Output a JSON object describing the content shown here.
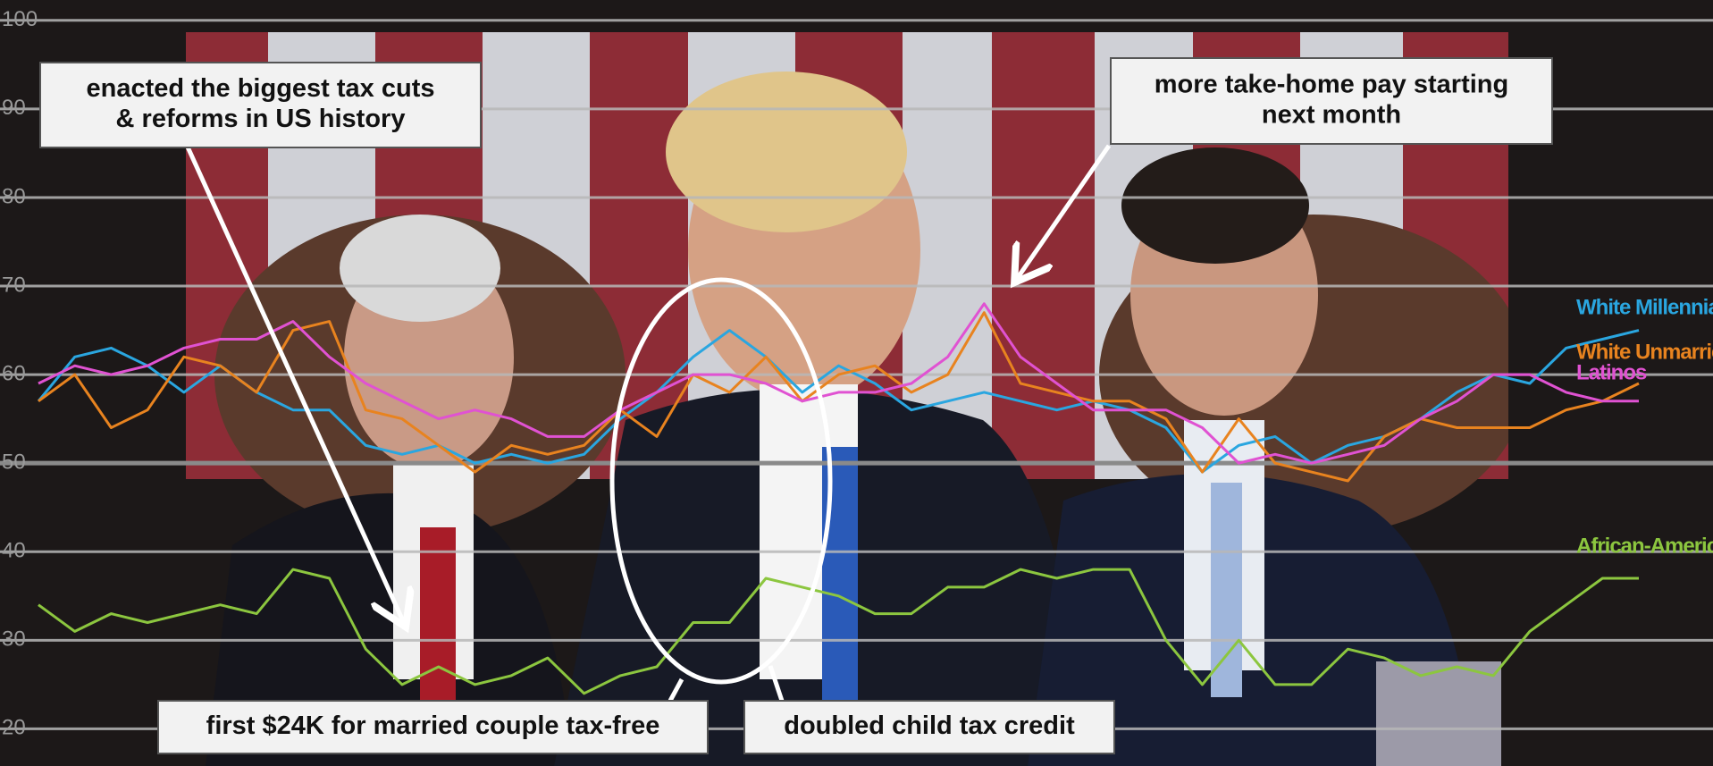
{
  "chart_data": {
    "type": "line",
    "ylim": [
      15.8,
      102.3
    ],
    "yticks": [
      20,
      30,
      40,
      50,
      60,
      70,
      80,
      90,
      100
    ],
    "grid": true,
    "series": [
      {
        "name": "White Millennials",
        "color": "#2aa6e0",
        "values": [
          57,
          62,
          63,
          61,
          58,
          61,
          58,
          56,
          56,
          52,
          51,
          52,
          50,
          51,
          50,
          51,
          55,
          58,
          62,
          65,
          62,
          58,
          61,
          59,
          56,
          57,
          58,
          57,
          56,
          57,
          56,
          54,
          49,
          52,
          53,
          50,
          52,
          53,
          55,
          58,
          60,
          59,
          63,
          64,
          65
        ]
      },
      {
        "name": "White Unmarried Women",
        "color": "#e8831f",
        "values": [
          57,
          60,
          54,
          56,
          62,
          61,
          58,
          65,
          66,
          56,
          55,
          52,
          49,
          52,
          51,
          52,
          56,
          53,
          60,
          58,
          62,
          57,
          60,
          61,
          58,
          60,
          67,
          59,
          58,
          57,
          57,
          55,
          49,
          55,
          50,
          49,
          48,
          53,
          55,
          54,
          54,
          54,
          56,
          57,
          59
        ]
      },
      {
        "name": "Latinos",
        "color": "#e052d2",
        "values": [
          59,
          61,
          60,
          61,
          63,
          64,
          64,
          66,
          62,
          59,
          57,
          55,
          56,
          55,
          53,
          53,
          56,
          58,
          60,
          60,
          59,
          57,
          58,
          58,
          59,
          62,
          68,
          62,
          59,
          56,
          56,
          56,
          54,
          50,
          51,
          50,
          51,
          52,
          55,
          57,
          60,
          60,
          58,
          57,
          57
        ]
      },
      {
        "name": "African-Americans",
        "color": "#8cc63f",
        "values": [
          34,
          31,
          33,
          32,
          33,
          34,
          33,
          38,
          37,
          29,
          25,
          27,
          25,
          26,
          28,
          24,
          26,
          27,
          32,
          32,
          37,
          36,
          35,
          33,
          33,
          36,
          36,
          38,
          37,
          38,
          38,
          30,
          25,
          30,
          25,
          25,
          29,
          28,
          26,
          27,
          26,
          31,
          34,
          37,
          37
        ]
      }
    ],
    "annotations": [
      {
        "text": [
          "enacted the biggest tax cuts",
          "& reforms in US history"
        ]
      },
      {
        "text": [
          "more take-home pay starting",
          "next month"
        ]
      },
      {
        "text": [
          "first $24K for married couple tax-free"
        ]
      },
      {
        "text": [
          "doubled child tax credit"
        ]
      }
    ]
  }
}
